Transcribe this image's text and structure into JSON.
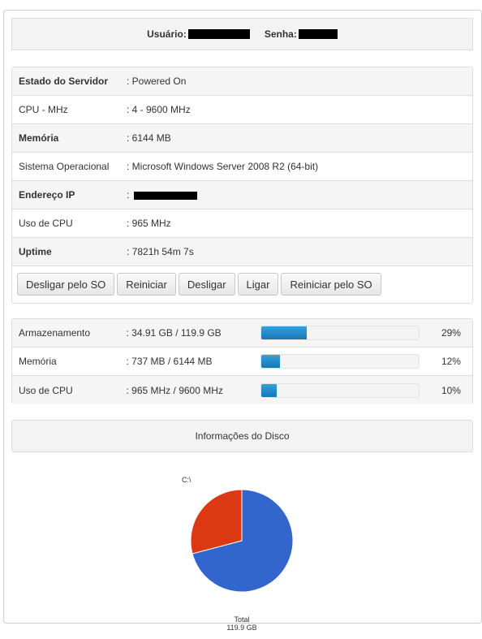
{
  "credentials": {
    "user_label": "Usuário:",
    "pass_label": "Senha:"
  },
  "server_info": {
    "rows": [
      {
        "key": "Estado do Servidor",
        "value": ": Powered On"
      },
      {
        "key": "CPU - MHz",
        "value": ": 4 - 9600 MHz"
      },
      {
        "key": "Memória",
        "value": ": 6144 MB"
      },
      {
        "key": "Sistema Operacional",
        "value": ": Microsoft Windows Server 2008 R2 (64-bit)"
      },
      {
        "key": "Endereço IP",
        "value": ":"
      },
      {
        "key": "Uso de CPU",
        "value": ": 965 MHz"
      },
      {
        "key": "Uptime",
        "value": ": 7821h 54m 7s"
      }
    ]
  },
  "actions": {
    "shutdown_os": "Desligar pelo SO",
    "restart": "Reiniciar",
    "power_off": "Desligar",
    "power_on": "Ligar",
    "restart_os": "Reiniciar pelo SO"
  },
  "usage": [
    {
      "label": "Armazenamento",
      "value": ": 34.91 GB / 119.9 GB",
      "percent": 29,
      "percent_text": "29%"
    },
    {
      "label": "Memória",
      "value": ": 737 MB / 6144 MB",
      "percent": 12,
      "percent_text": "12%"
    },
    {
      "label": "Uso de CPU",
      "value": ": 965 MHz / 9600 MHz",
      "percent": 10,
      "percent_text": "10%"
    }
  ],
  "disk": {
    "header": "Informações do Disco",
    "drive_label": "C:\\",
    "total_label": "Total",
    "total_value": "119.9 GB"
  },
  "chart_data": {
    "type": "pie",
    "title": "C:\\",
    "slices": [
      {
        "value": 29.1,
        "color": "#dc3912"
      },
      {
        "value": 70.9,
        "color": "#3366cc"
      }
    ]
  },
  "colors": {
    "bar_fill": "#1a7fc1",
    "pie_used": "#dc3912",
    "pie_free": "#3366cc"
  }
}
